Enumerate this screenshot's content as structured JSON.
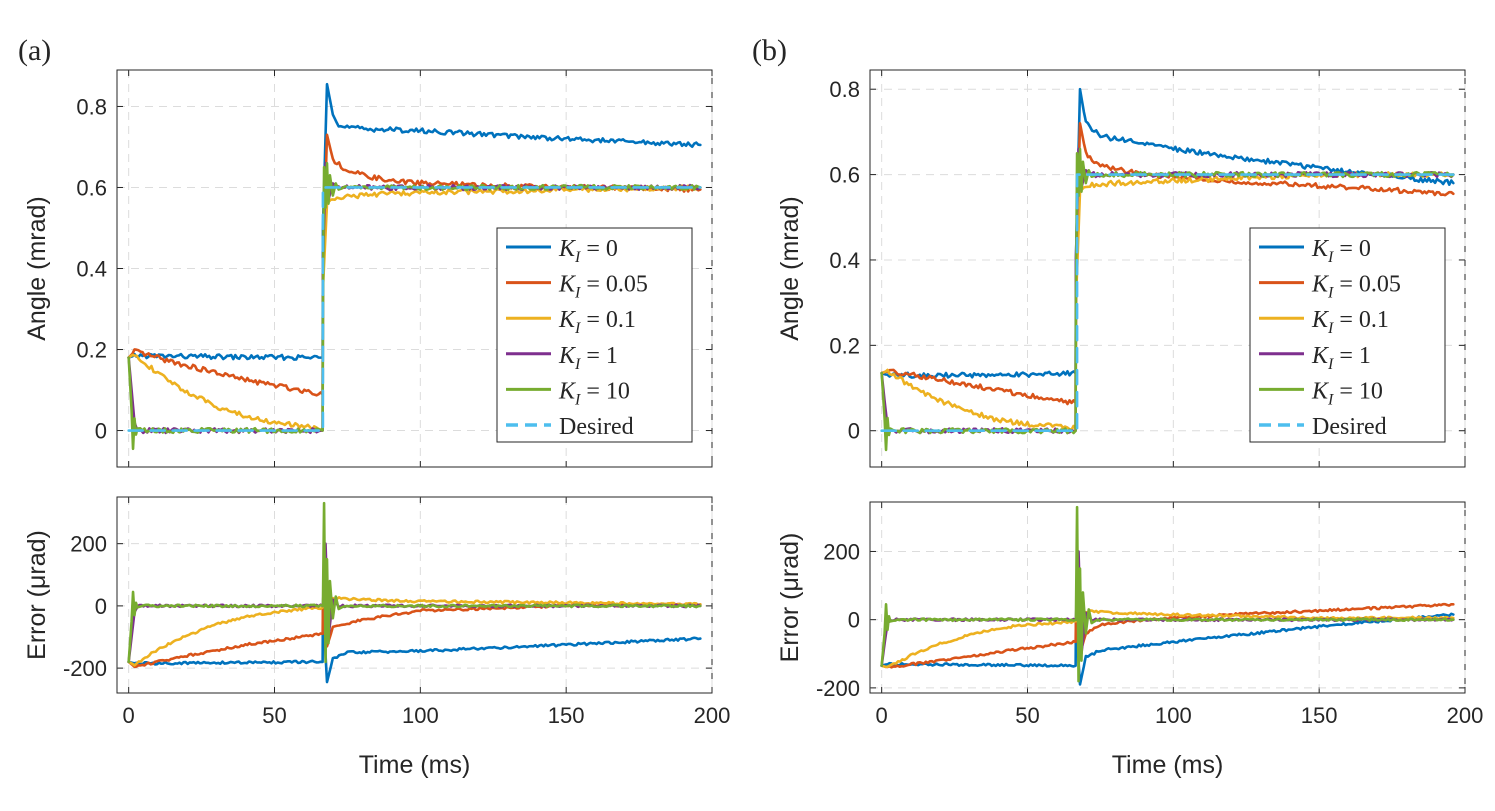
{
  "colors": {
    "k0": "#0072BD",
    "k005": "#D95319",
    "k01": "#EDB120",
    "k1": "#7E2F8E",
    "k10": "#77AC30",
    "desired": "#4DBEEE"
  },
  "chart_data": [
    {
      "panel": "(a)",
      "type": "line",
      "legend_position": "center-right",
      "xlabel": "Time (ms)",
      "xlim": [
        -4,
        200
      ],
      "x_ticks": [
        "0",
        "50",
        "100",
        "150",
        "200"
      ],
      "angle": {
        "ylabel": "Angle (mrad)",
        "ylim": [
          -0.09,
          0.89
        ],
        "y_ticks": [
          "0",
          "0.2",
          "0.4",
          "0.6",
          "0.8"
        ],
        "series": [
          {
            "name": "K_I = 0",
            "legend_label": "KI = 0",
            "color": "#0072BD",
            "dash": false,
            "x": [
              0,
              2,
              20,
              40,
              66.5,
              66.6,
              68,
              70,
              72,
              80,
              100,
              150,
              196
            ],
            "y": [
              0.18,
              0.185,
              0.183,
              0.181,
              0.18,
              0.5,
              0.855,
              0.78,
              0.75,
              0.745,
              0.74,
              0.72,
              0.705
            ]
          },
          {
            "name": "K_I = 0.05",
            "legend_label": "KI = 0.05",
            "color": "#D95319",
            "dash": false,
            "x": [
              0,
              2,
              20,
              40,
              66.5,
              66.6,
              68,
              70,
              75,
              90,
              120,
              196
            ],
            "y": [
              0.18,
              0.195,
              0.16,
              0.125,
              0.09,
              0.4,
              0.73,
              0.67,
              0.64,
              0.615,
              0.605,
              0.595
            ]
          },
          {
            "name": "K_I = 0.1",
            "legend_label": "KI = 0.1",
            "color": "#EDB120",
            "dash": false,
            "x": [
              0,
              2,
              10,
              20,
              30,
              40,
              50,
              60,
              66.5,
              66.6,
              68,
              70,
              75,
              90,
              120,
              196
            ],
            "y": [
              0.18,
              0.19,
              0.14,
              0.095,
              0.06,
              0.035,
              0.02,
              0.01,
              0.005,
              0.35,
              0.56,
              0.575,
              0.578,
              0.585,
              0.59,
              0.6
            ]
          },
          {
            "name": "K_I = 1",
            "legend_label": "KI = 1",
            "color": "#7E2F8E",
            "dash": false,
            "x": [
              0,
              1,
              2,
              3,
              5,
              66.5,
              66.6,
              67.5,
              68.5,
              70,
              72,
              196
            ],
            "y": [
              0.18,
              0.1,
              0.02,
              0.0,
              0.0,
              0.0,
              0.4,
              0.66,
              0.57,
              0.61,
              0.6,
              0.6
            ]
          },
          {
            "name": "K_I = 10",
            "legend_label": "KI = 10",
            "color": "#77AC30",
            "dash": false,
            "x": [
              0,
              1,
              1.5,
              2,
              2.5,
              3,
              4,
              66.5,
              66.6,
              67,
              67.5,
              68,
              68.5,
              69,
              70,
              71,
              72,
              74,
              196
            ],
            "y": [
              0.18,
              0.05,
              -0.045,
              0.03,
              -0.01,
              0.005,
              0.0,
              0.0,
              0.3,
              0.65,
              0.55,
              0.66,
              0.56,
              0.63,
              0.58,
              0.61,
              0.595,
              0.6,
              0.6
            ]
          },
          {
            "name": "Desired",
            "legend_label": "Desired",
            "color": "#4DBEEE",
            "dash": true,
            "x": [
              0,
              66.6,
              66.6,
              196
            ],
            "y": [
              0,
              0,
              0.6,
              0.6
            ]
          }
        ]
      },
      "error": {
        "ylabel": "Error (μrad)",
        "ylim": [
          -280,
          350
        ],
        "y_ticks": [
          "-200",
          "0",
          "200"
        ],
        "series": [
          {
            "name": "K_I = 0",
            "color": "#0072BD",
            "x": [
              0,
              2,
              66.5,
              66.6,
              68,
              70,
              75,
              100,
              150,
              196
            ],
            "y": [
              -180,
              -185,
              -180,
              0,
              -245,
              -170,
              -150,
              -145,
              -125,
              -105
            ]
          },
          {
            "name": "K_I = 0.05",
            "color": "#D95319",
            "x": [
              0,
              2,
              20,
              40,
              66.5,
              66.6,
              68,
              70,
              80,
              100,
              150,
              196
            ],
            "y": [
              -180,
              -195,
              -160,
              -125,
              -90,
              0,
              -130,
              -70,
              -45,
              -15,
              0,
              5
            ]
          },
          {
            "name": "K_I = 0.1",
            "color": "#EDB120",
            "x": [
              0,
              2,
              10,
              20,
              30,
              40,
              50,
              60,
              66.5,
              66.6,
              68,
              70,
              75,
              100,
              150,
              196
            ],
            "y": [
              -180,
              -190,
              -140,
              -95,
              -60,
              -35,
              -20,
              -10,
              -5,
              0,
              20,
              25,
              22,
              15,
              10,
              5
            ]
          },
          {
            "name": "K_I = 1",
            "color": "#7E2F8E",
            "x": [
              0,
              1,
              2,
              3,
              66.5,
              66.6,
              67.5,
              68.5,
              70,
              72,
              196
            ],
            "y": [
              -180,
              -100,
              -20,
              0,
              0,
              0,
              200,
              -100,
              20,
              0,
              0
            ]
          },
          {
            "name": "K_I = 10",
            "color": "#77AC30",
            "x": [
              0,
              1,
              1.5,
              2,
              2.5,
              3,
              4,
              66.5,
              66.6,
              67,
              67.5,
              68,
              68.5,
              69,
              70,
              71,
              72,
              74,
              196
            ],
            "y": [
              -180,
              -50,
              45,
              -30,
              10,
              -5,
              0,
              0,
              0,
              330,
              -180,
              150,
              -120,
              80,
              -40,
              30,
              -10,
              0,
              0
            ]
          }
        ]
      }
    },
    {
      "panel": "(b)",
      "type": "line",
      "legend_position": "center-right",
      "xlabel": "Time (ms)",
      "xlim": [
        -4,
        200
      ],
      "x_ticks": [
        "0",
        "50",
        "100",
        "150",
        "200"
      ],
      "angle": {
        "ylabel": "Angle (mrad)",
        "ylim": [
          -0.085,
          0.845
        ],
        "y_ticks": [
          "0",
          "0.2",
          "0.4",
          "0.6",
          "0.8"
        ],
        "series": [
          {
            "name": "K_I = 0",
            "legend_label": "KI = 0",
            "color": "#0072BD",
            "dash": false,
            "x": [
              0,
              2,
              20,
              40,
              66.5,
              66.6,
              68,
              70,
              75,
              100,
              150,
              196
            ],
            "y": [
              0.135,
              0.13,
              0.13,
              0.13,
              0.135,
              0.4,
              0.8,
              0.72,
              0.69,
              0.66,
              0.615,
              0.58
            ]
          },
          {
            "name": "K_I = 0.05",
            "legend_label": "KI = 0.05",
            "color": "#D95319",
            "dash": false,
            "x": [
              0,
              2,
              20,
              40,
              66.5,
              66.6,
              68,
              70,
              75,
              90,
              120,
              160,
              196
            ],
            "y": [
              0.135,
              0.14,
              0.12,
              0.095,
              0.065,
              0.35,
              0.72,
              0.65,
              0.62,
              0.6,
              0.585,
              0.57,
              0.555
            ]
          },
          {
            "name": "K_I = 0.1",
            "legend_label": "KI = 0.1",
            "color": "#EDB120",
            "dash": false,
            "x": [
              0,
              2,
              10,
              20,
              30,
              40,
              50,
              60,
              66.5,
              66.6,
              68,
              70,
              80,
              100,
              150,
              196
            ],
            "y": [
              0.135,
              0.14,
              0.105,
              0.07,
              0.045,
              0.025,
              0.015,
              0.01,
              0.005,
              0.3,
              0.56,
              0.575,
              0.58,
              0.585,
              0.6,
              0.6
            ]
          },
          {
            "name": "K_I = 1",
            "legend_label": "KI = 1",
            "color": "#7E2F8E",
            "dash": false,
            "x": [
              0,
              1,
              2,
              3,
              5,
              66.5,
              66.6,
              67.5,
              68.5,
              70,
              72,
              196
            ],
            "y": [
              0.135,
              0.07,
              0.01,
              0.0,
              0.0,
              0.0,
              0.4,
              0.66,
              0.57,
              0.61,
              0.6,
              0.6
            ]
          },
          {
            "name": "K_I = 10",
            "legend_label": "KI = 10",
            "color": "#77AC30",
            "dash": false,
            "x": [
              0,
              1,
              1.5,
              2,
              2.5,
              3,
              4,
              66.5,
              66.6,
              67,
              67.5,
              68,
              68.5,
              69,
              70,
              71,
              72,
              74,
              196
            ],
            "y": [
              0.135,
              0.03,
              -0.045,
              0.03,
              -0.01,
              0.005,
              0.0,
              0.0,
              0.3,
              0.65,
              0.55,
              0.66,
              0.56,
              0.63,
              0.58,
              0.61,
              0.595,
              0.6,
              0.6
            ]
          },
          {
            "name": "Desired",
            "legend_label": "Desired",
            "color": "#4DBEEE",
            "dash": true,
            "x": [
              0,
              67,
              67,
              196
            ],
            "y": [
              0,
              0,
              0.6,
              0.6
            ]
          }
        ]
      },
      "error": {
        "ylabel": "Error (μrad)",
        "ylim": [
          -215,
          345
        ],
        "y_ticks": [
          "-200",
          "0",
          "200"
        ],
        "series": [
          {
            "name": "K_I = 0",
            "color": "#0072BD",
            "x": [
              0,
              2,
              66.5,
              66.6,
              68,
              70,
              75,
              100,
              150,
              196
            ],
            "y": [
              -135,
              -130,
              -135,
              0,
              -190,
              -110,
              -90,
              -65,
              -20,
              15
            ]
          },
          {
            "name": "K_I = 0.05",
            "color": "#D95319",
            "x": [
              0,
              2,
              20,
              40,
              66.5,
              66.6,
              68,
              70,
              75,
              90,
              120,
              160,
              196
            ],
            "y": [
              -135,
              -140,
              -120,
              -95,
              -65,
              0,
              -100,
              -40,
              -15,
              0,
              15,
              30,
              45
            ]
          },
          {
            "name": "K_I = 0.1",
            "color": "#EDB120",
            "x": [
              0,
              2,
              10,
              20,
              30,
              40,
              50,
              60,
              66.5,
              66.6,
              68,
              70,
              80,
              100,
              150,
              196
            ],
            "y": [
              -135,
              -140,
              -105,
              -70,
              -45,
              -25,
              -15,
              -10,
              -5,
              0,
              20,
              25,
              20,
              15,
              5,
              5
            ]
          },
          {
            "name": "K_I = 1",
            "color": "#7E2F8E",
            "x": [
              0,
              1,
              2,
              3,
              66.5,
              66.6,
              67.5,
              68.5,
              70,
              72,
              196
            ],
            "y": [
              -135,
              -70,
              -10,
              0,
              0,
              0,
              200,
              -100,
              20,
              0,
              0
            ]
          },
          {
            "name": "K_I = 10",
            "color": "#77AC30",
            "x": [
              0,
              1,
              1.5,
              2,
              2.5,
              3,
              4,
              66.5,
              66.6,
              67,
              67.5,
              68,
              68.5,
              69,
              70,
              71,
              72,
              74,
              196
            ],
            "y": [
              -135,
              -40,
              45,
              -30,
              10,
              -5,
              0,
              0,
              0,
              330,
              -180,
              150,
              -120,
              80,
              -40,
              30,
              -10,
              0,
              0
            ]
          }
        ]
      }
    }
  ]
}
